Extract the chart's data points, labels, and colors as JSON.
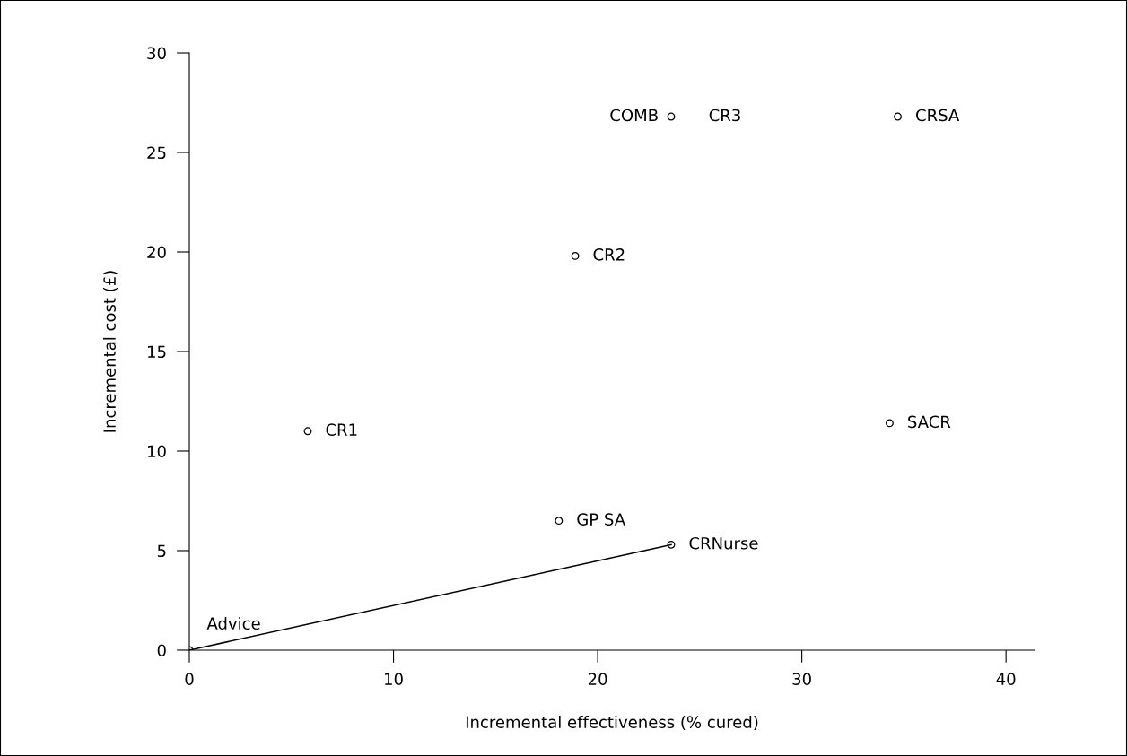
{
  "chart_data": {
    "type": "scatter",
    "xlabel": "Incremental effectiveness (% cured)",
    "ylabel": "Incremental cost (£)",
    "xlim": [
      0,
      41.4
    ],
    "ylim": [
      0,
      30
    ],
    "xticks": [
      0,
      10,
      20,
      30,
      40
    ],
    "yticks": [
      0,
      5,
      10,
      15,
      20,
      25,
      30
    ],
    "grid": false,
    "series": [
      {
        "marker": "circle",
        "color": "#000000",
        "x": [
          0,
          5.8,
          18.1,
          23.6,
          18.9,
          23.6,
          34.7,
          34.3
        ],
        "values": [
          0,
          11.0,
          6.5,
          5.3,
          19.8,
          26.8,
          26.8,
          11.4
        ]
      },
      {
        "type": "line",
        "color": "#000000",
        "x": [
          0,
          23.6
        ],
        "values": [
          0,
          5.3
        ]
      }
    ],
    "annotations": [
      {
        "text": "Advice",
        "x": 0,
        "y": 0
      },
      {
        "text": "CR1",
        "x": 5.8,
        "y": 11.0
      },
      {
        "text": "GP SA",
        "x": 18.1,
        "y": 6.5
      },
      {
        "text": "CRNurse",
        "x": 23.6,
        "y": 5.3
      },
      {
        "text": "CR2",
        "x": 18.9,
        "y": 19.8
      },
      {
        "text": "COMB",
        "x": 23.6,
        "y": 26.8
      },
      {
        "text": "CR3",
        "x": 23.6,
        "y": 26.8
      },
      {
        "text": "CRSA",
        "x": 34.7,
        "y": 26.8
      },
      {
        "text": "SACR",
        "x": 34.3,
        "y": 11.4
      }
    ]
  }
}
